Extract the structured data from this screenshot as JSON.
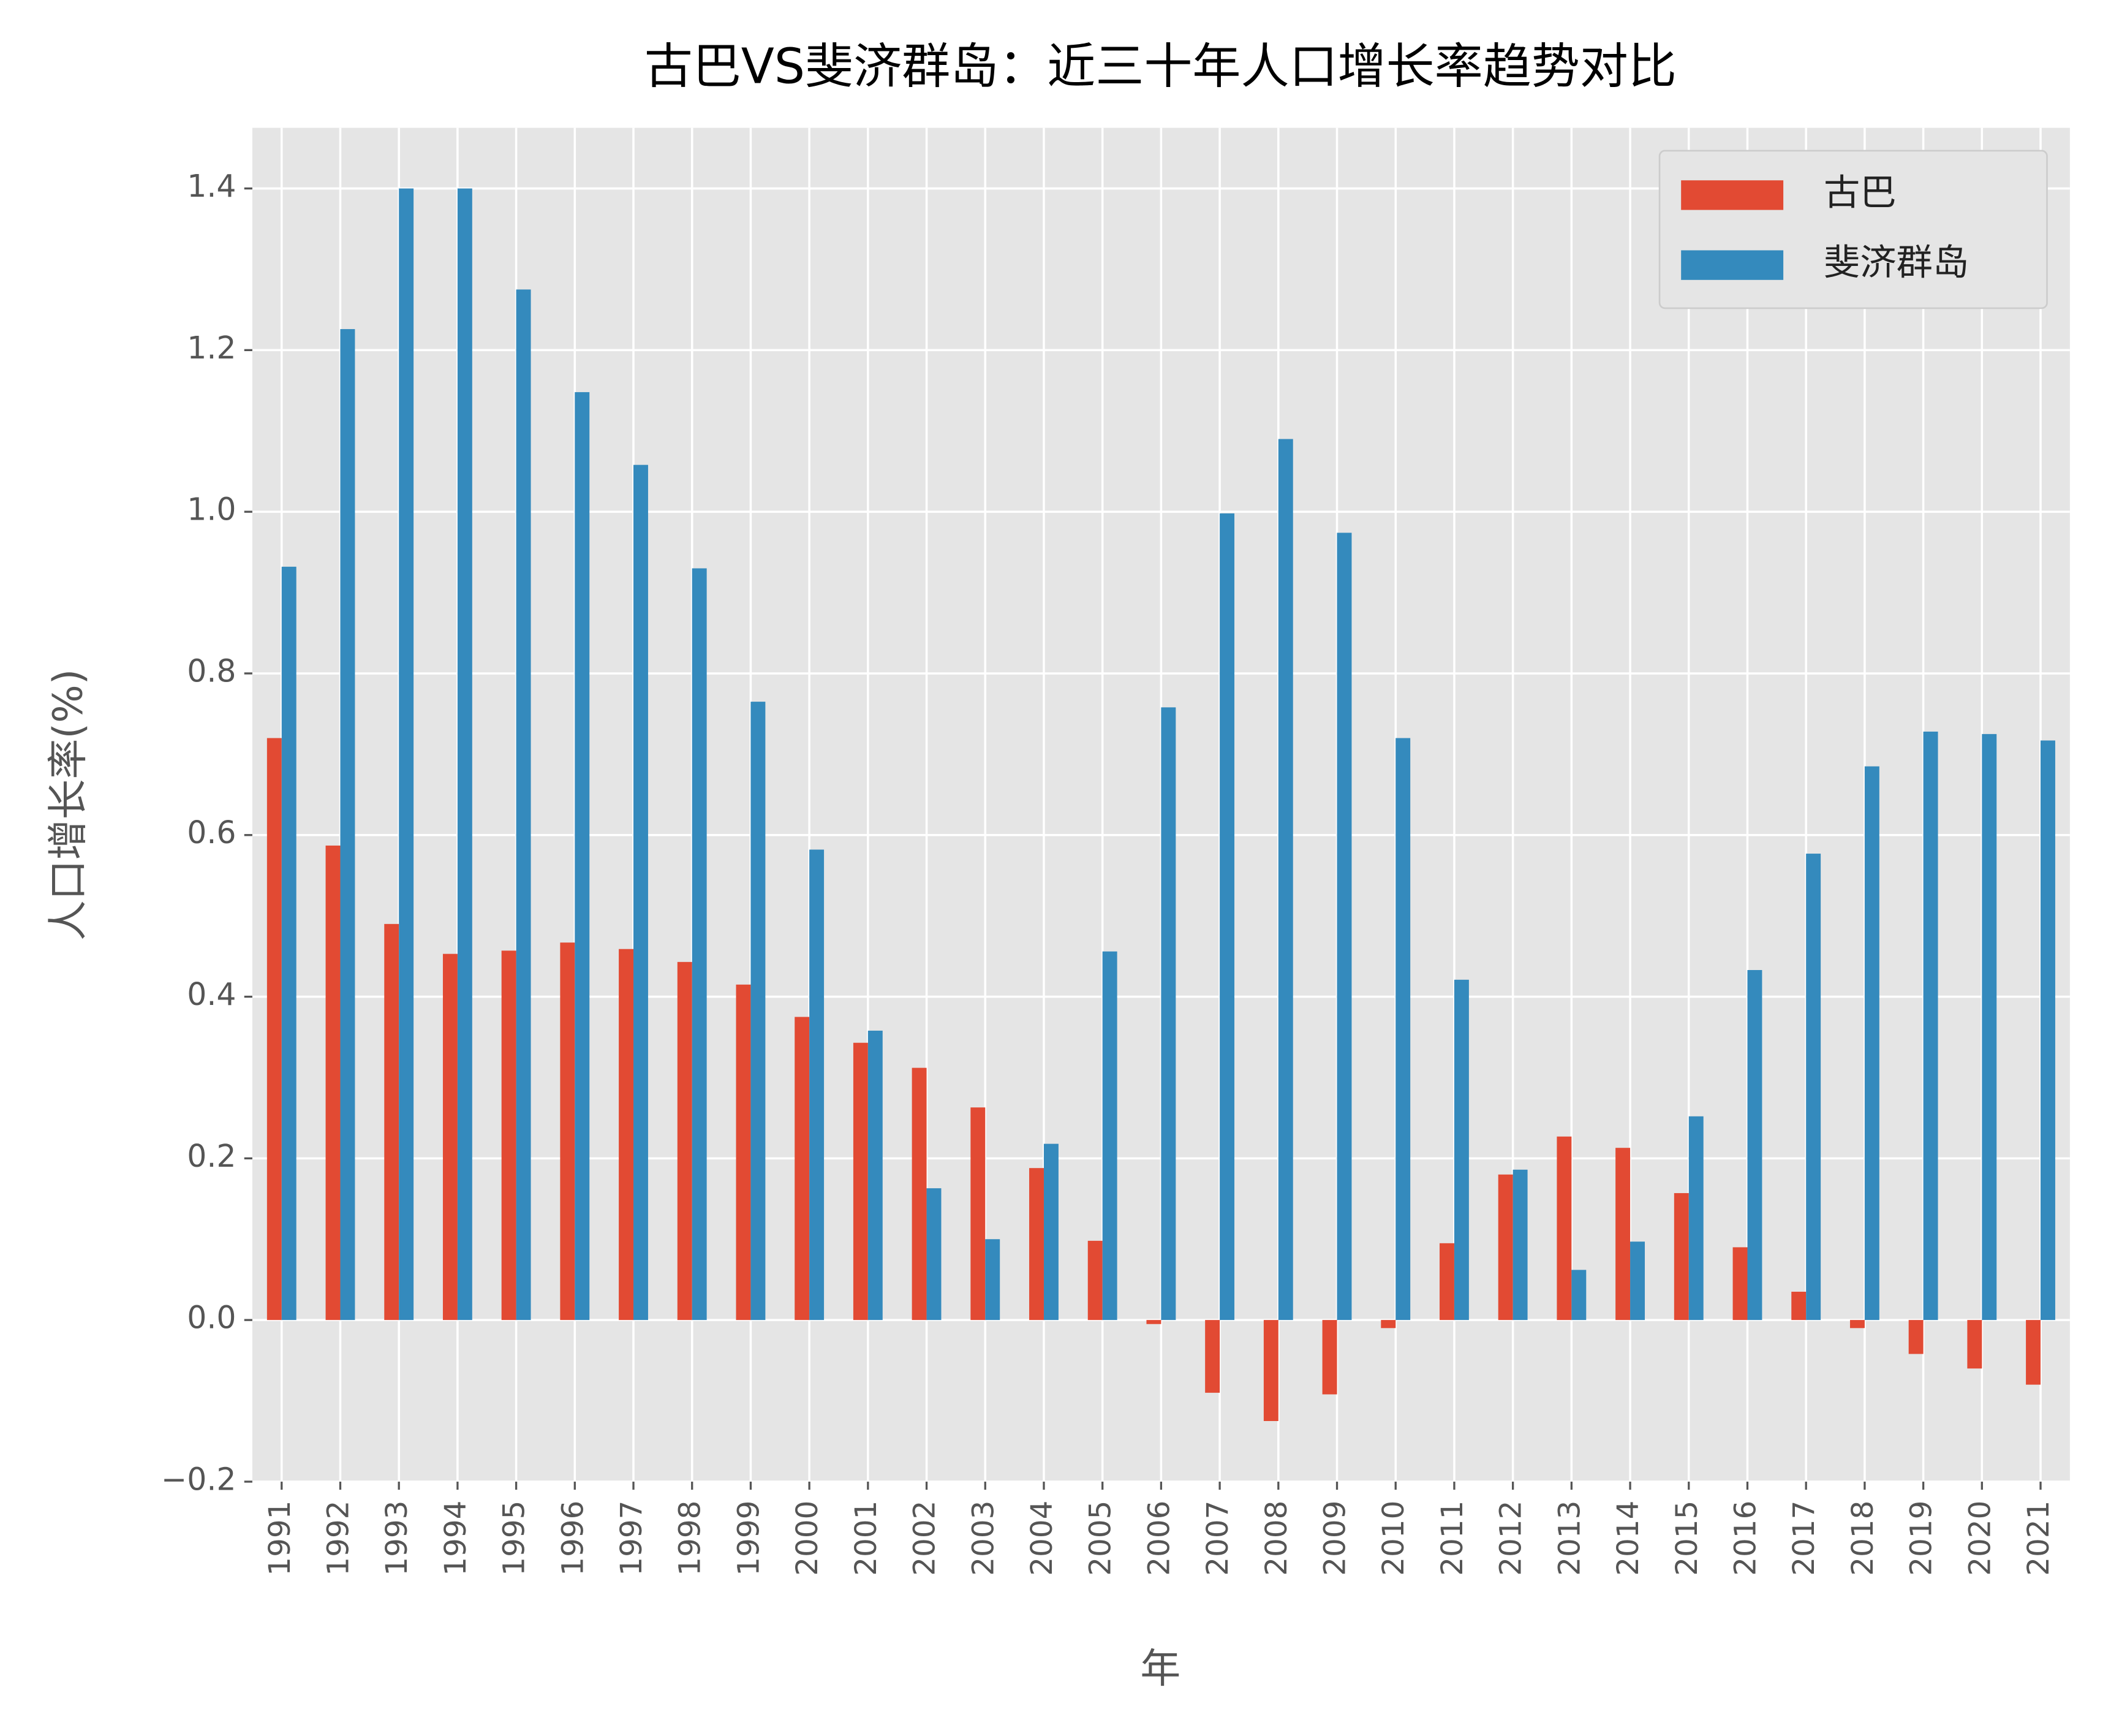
{
  "chart_data": {
    "type": "bar",
    "title": "古巴VS斐济群岛：近三十年人口增长率趋势对比",
    "x_label": "年",
    "y_label": "人口增长率(%)",
    "categories": [
      "1991",
      "1992",
      "1993",
      "1994",
      "1995",
      "1996",
      "1997",
      "1998",
      "1999",
      "2000",
      "2001",
      "2002",
      "2003",
      "2004",
      "2005",
      "2006",
      "2007",
      "2008",
      "2009",
      "2010",
      "2011",
      "2012",
      "2013",
      "2014",
      "2015",
      "2016",
      "2017",
      "2018",
      "2019",
      "2020",
      "2021"
    ],
    "series": [
      {
        "name": "古巴",
        "color": "#E24A33",
        "values": [
          0.72,
          0.587,
          0.49,
          0.453,
          0.457,
          0.467,
          0.459,
          0.443,
          0.415,
          0.375,
          0.343,
          0.312,
          0.263,
          0.188,
          0.098,
          -0.005,
          -0.09,
          -0.125,
          -0.092,
          -0.01,
          0.095,
          0.18,
          0.227,
          0.213,
          0.157,
          0.09,
          0.035,
          -0.01,
          -0.042,
          -0.06,
          -0.08
        ]
      },
      {
        "name": "斐济群岛",
        "color": "#348ABD",
        "values": [
          0.932,
          1.226,
          1.4,
          1.4,
          1.275,
          1.148,
          1.058,
          0.93,
          0.765,
          0.582,
          0.358,
          0.163,
          0.1,
          0.218,
          0.456,
          0.758,
          0.998,
          1.09,
          0.974,
          0.72,
          0.421,
          0.186,
          0.062,
          0.097,
          0.252,
          0.433,
          0.577,
          0.685,
          0.728,
          0.725,
          0.717
        ]
      }
    ],
    "ylim": [
      -0.2,
      1.475
    ],
    "yticks": [
      {
        "value": -0.2,
        "label": "−0.2"
      },
      {
        "value": 0,
        "label": "0.0"
      },
      0.2,
      0.4,
      0.6,
      0.8,
      {
        "value": 1,
        "label": "1.0"
      },
      1.2,
      1.4
    ],
    "grid": true,
    "legend": "upper right"
  }
}
